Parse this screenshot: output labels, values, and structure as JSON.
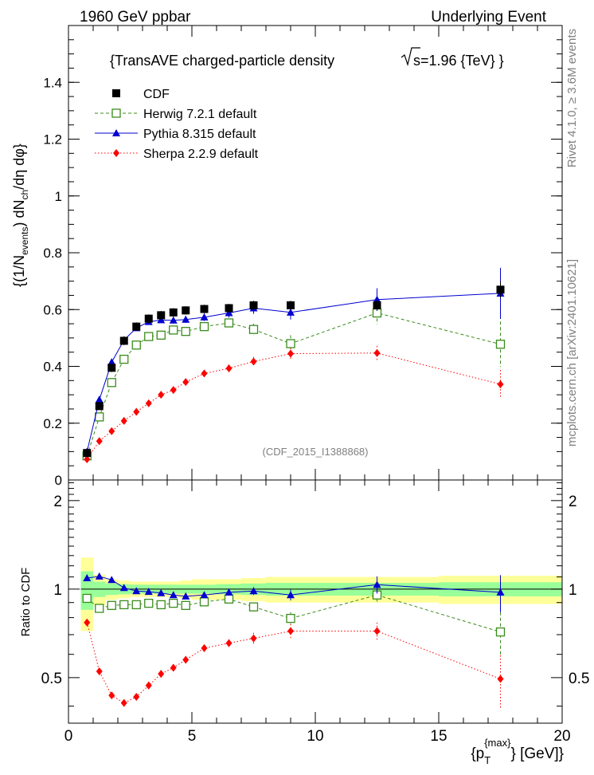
{
  "header": {
    "left": "1960 GeV ppbar",
    "right": "Underlying Event"
  },
  "side_labels": {
    "rivet": "Rivet 4.1.0, ≥ 3.6M events",
    "mcplots": "mcplots.cern.ch [arXiv:2401.10621]"
  },
  "chart_data": [
    {
      "type": "line",
      "panel": "main",
      "title_main": "{TransAVE charged-particle density",
      "title_energy": "s=1.96 {TeV} }",
      "watermark": "(CDF_2015_I1388868)",
      "ylabel": "{(1/N_events) dN_ch/dη dφ}",
      "xlim": [
        0,
        20
      ],
      "ylim": [
        0,
        1.6
      ],
      "yticks": [
        0,
        0.2,
        0.4,
        0.6,
        0.8,
        1,
        1.2,
        1.4
      ],
      "ytick_labels": [
        "0",
        "0.2",
        "0.4",
        "0.6",
        "0.8",
        "1",
        "1.2",
        "1.4"
      ],
      "legend_position": "top-left",
      "legend": [
        "CDF",
        "Herwig 7.2.1 default",
        "Pythia 8.315 default",
        "Sherpa 2.2.9 default"
      ],
      "series": [
        {
          "name": "CDF",
          "style": "black-square",
          "color": "#000000",
          "x": [
            0.75,
            1.25,
            1.75,
            2.25,
            2.75,
            3.25,
            3.75,
            4.25,
            4.75,
            5.5,
            6.5,
            7.5,
            9.0,
            12.5,
            17.5
          ],
          "y": [
            0.095,
            0.26,
            0.395,
            0.49,
            0.54,
            0.568,
            0.58,
            0.59,
            0.597,
            0.602,
            0.605,
            0.615,
            0.615,
            0.615,
            0.67
          ],
          "err": [
            0.005,
            0.012,
            0.015,
            0.015,
            0.015,
            0.015,
            0.015,
            0.015,
            0.015,
            0.015,
            0.015,
            0.016,
            0.016,
            0.018,
            0.03
          ]
        },
        {
          "name": "Herwig 7.2.1 default",
          "style": "green-open-square-dashed",
          "color": "#3a8c1c",
          "x": [
            0.75,
            1.25,
            1.75,
            2.25,
            2.75,
            3.25,
            3.75,
            4.25,
            4.75,
            5.5,
            6.5,
            7.5,
            9.0,
            12.5,
            17.5
          ],
          "y": [
            0.085,
            0.222,
            0.343,
            0.425,
            0.475,
            0.505,
            0.51,
            0.528,
            0.523,
            0.54,
            0.553,
            0.53,
            0.48,
            0.588,
            0.478
          ],
          "err": [
            0.004,
            0.006,
            0.007,
            0.007,
            0.008,
            0.009,
            0.009,
            0.01,
            0.011,
            0.012,
            0.014,
            0.02,
            0.03,
            0.04,
            0.08
          ]
        },
        {
          "name": "Pythia 8.315 default",
          "style": "blue-triangle-solid",
          "color": "#0000d0",
          "x": [
            0.75,
            1.25,
            1.75,
            2.25,
            2.75,
            3.25,
            3.75,
            4.25,
            4.75,
            5.5,
            6.5,
            7.5,
            9.0,
            12.5,
            17.5
          ],
          "y": [
            0.1,
            0.283,
            0.415,
            0.493,
            0.535,
            0.557,
            0.563,
            0.562,
            0.565,
            0.573,
            0.588,
            0.605,
            0.59,
            0.635,
            0.657
          ],
          "err": [
            0.004,
            0.006,
            0.007,
            0.008,
            0.009,
            0.01,
            0.01,
            0.011,
            0.012,
            0.013,
            0.016,
            0.02,
            0.025,
            0.04,
            0.09
          ]
        },
        {
          "name": "Sherpa 2.2.9 default",
          "style": "red-diamond-dotted",
          "color": "#ff0000",
          "x": [
            0.75,
            1.25,
            1.75,
            2.25,
            2.75,
            3.25,
            3.75,
            4.25,
            4.75,
            5.5,
            6.5,
            7.5,
            9.0,
            12.5,
            17.5
          ],
          "y": [
            0.073,
            0.137,
            0.172,
            0.208,
            0.24,
            0.27,
            0.3,
            0.317,
            0.345,
            0.375,
            0.393,
            0.417,
            0.445,
            0.447,
            0.337
          ],
          "err": [
            0.003,
            0.004,
            0.005,
            0.006,
            0.007,
            0.008,
            0.009,
            0.01,
            0.011,
            0.012,
            0.014,
            0.016,
            0.02,
            0.025,
            0.05
          ]
        }
      ]
    },
    {
      "type": "line",
      "panel": "ratio",
      "ylabel": "Ratio to CDF",
      "xlabel": "{p_T^{max}} [GeV]}",
      "xlim": [
        0,
        20
      ],
      "ylim": [
        0.35,
        2.35
      ],
      "xticks": [
        0,
        5,
        10,
        15,
        20
      ],
      "xtick_labels": [
        "0",
        "5",
        "10",
        "15",
        "20"
      ],
      "yticks": [
        0.5,
        1,
        2
      ],
      "ytick_labels": [
        "0.5",
        "1",
        "2"
      ],
      "bands": {
        "xedges": [
          0.5,
          1.0,
          1.5,
          2.0,
          2.5,
          3.0,
          3.5,
          4.0,
          4.5,
          5.0,
          6.0,
          7.0,
          8.0,
          10.0,
          15.0,
          20.0
        ],
        "inner": [
          0.15,
          0.06,
          0.045,
          0.04,
          0.035,
          0.035,
          0.035,
          0.035,
          0.035,
          0.035,
          0.04,
          0.045,
          0.05,
          0.05,
          0.055
        ],
        "outer": [
          0.28,
          0.12,
          0.08,
          0.07,
          0.06,
          0.06,
          0.06,
          0.06,
          0.07,
          0.08,
          0.08,
          0.09,
          0.1,
          0.1,
          0.11
        ],
        "inner_color": "#99ff99",
        "outer_color": "#ffff99"
      },
      "series": [
        {
          "name": "Herwig 7.2.1 default",
          "x": [
            0.75,
            1.25,
            1.75,
            2.25,
            2.75,
            3.25,
            3.75,
            4.25,
            4.75,
            5.5,
            6.5,
            7.5,
            9.0,
            12.5,
            17.5
          ],
          "y": [
            0.93,
            0.86,
            0.88,
            0.885,
            0.885,
            0.895,
            0.885,
            0.895,
            0.88,
            0.905,
            0.925,
            0.87,
            0.795,
            0.955,
            0.715
          ],
          "err": [
            0.01,
            0.01,
            0.01,
            0.01,
            0.012,
            0.015,
            0.015,
            0.015,
            0.015,
            0.018,
            0.02,
            0.03,
            0.04,
            0.06,
            0.12
          ]
        },
        {
          "name": "Pythia 8.315 default",
          "x": [
            0.75,
            1.25,
            1.75,
            2.25,
            2.75,
            3.25,
            3.75,
            4.25,
            4.75,
            5.5,
            6.5,
            7.5,
            9.0,
            12.5,
            17.5
          ],
          "y": [
            1.09,
            1.105,
            1.075,
            1.01,
            0.985,
            0.98,
            0.97,
            0.955,
            0.945,
            0.955,
            0.975,
            0.985,
            0.955,
            1.035,
            0.975
          ],
          "err": [
            0.01,
            0.01,
            0.01,
            0.01,
            0.012,
            0.015,
            0.015,
            0.015,
            0.015,
            0.018,
            0.02,
            0.03,
            0.04,
            0.07,
            0.14
          ]
        },
        {
          "name": "Sherpa 2.2.9 default",
          "x": [
            0.75,
            1.25,
            1.75,
            2.25,
            2.75,
            3.25,
            3.75,
            4.25,
            4.75,
            5.5,
            6.5,
            7.5,
            9.0,
            12.5,
            17.5
          ],
          "y": [
            0.77,
            0.525,
            0.435,
            0.41,
            0.43,
            0.47,
            0.515,
            0.54,
            0.575,
            0.63,
            0.655,
            0.68,
            0.72,
            0.72,
            0.495
          ],
          "err": [
            0.01,
            0.01,
            0.01,
            0.01,
            0.012,
            0.015,
            0.015,
            0.015,
            0.015,
            0.018,
            0.02,
            0.03,
            0.04,
            0.05,
            0.1
          ]
        }
      ]
    }
  ]
}
